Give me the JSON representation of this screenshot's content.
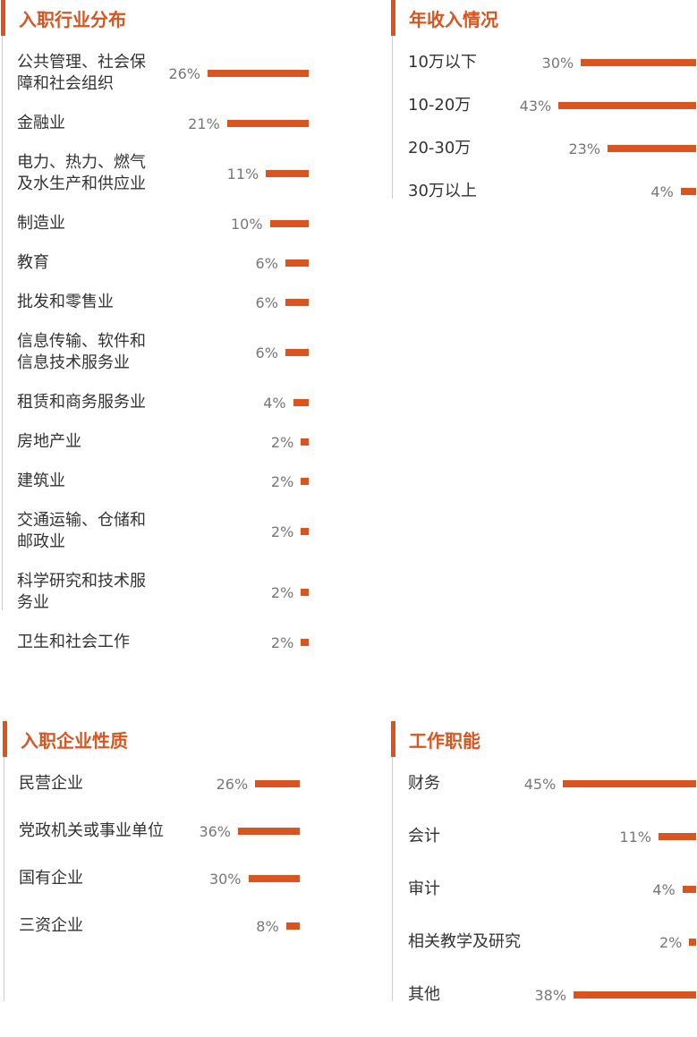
{
  "chart_data": [
    {
      "type": "bar",
      "title": "入职行业分布",
      "color": "#d9541e",
      "categories": [
        "公共管理、社会保障和社会组织",
        "金融业",
        "电力、热力、燃气及水生产和供应业",
        "制造业",
        "教育",
        "批发和零售业",
        "信息传输、软件和信息技术服务业",
        "租赁和商务服务业",
        "房地产业",
        "建筑业",
        "交通运输、仓储和邮政业",
        "科学研究和技术服务业",
        "卫生和社会工作"
      ],
      "values": [
        26,
        21,
        11,
        10,
        6,
        6,
        6,
        4,
        2,
        2,
        2,
        2,
        2
      ],
      "value_labels": [
        "26%",
        "21%",
        "11%",
        "10%",
        "6%",
        "6%",
        "6%",
        "4%",
        "2%",
        "2%",
        "2%",
        "2%",
        "2%"
      ]
    },
    {
      "type": "bar",
      "title": "年收入情况",
      "color": "#d9541e",
      "categories": [
        "10万以下",
        "10-20万",
        "20-30万",
        "30万以上"
      ],
      "values": [
        30,
        43,
        23,
        4
      ],
      "value_labels": [
        "30%",
        "43%",
        "23%",
        "4%"
      ]
    },
    {
      "type": "bar",
      "title": "入职企业性质",
      "color": "#d9541e",
      "categories": [
        "民营企业",
        "党政机关或事业单位",
        "国有企业",
        "三资企业"
      ],
      "values": [
        26,
        36,
        30,
        8
      ],
      "value_labels": [
        "26%",
        "36%",
        "30%",
        "8%"
      ]
    },
    {
      "type": "bar",
      "title": "工作职能",
      "color": "#d9541e",
      "categories": [
        "财务",
        "会计",
        "审计",
        "相关教学及研究",
        "其他"
      ],
      "values": [
        45,
        11,
        4,
        2,
        38
      ],
      "value_labels": [
        "45%",
        "11%",
        "4%",
        "2%",
        "38%"
      ]
    }
  ]
}
